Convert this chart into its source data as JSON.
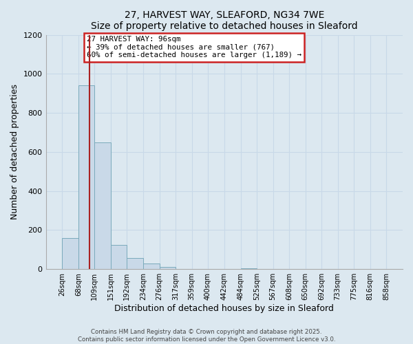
{
  "title": "27, HARVEST WAY, SLEAFORD, NG34 7WE",
  "subtitle": "Size of property relative to detached houses in Sleaford",
  "xlabel": "Distribution of detached houses by size in Sleaford",
  "ylabel": "Number of detached properties",
  "bar_edges": [
    26,
    68,
    109,
    151,
    192,
    234,
    276,
    317,
    359,
    400,
    442,
    484,
    525,
    567,
    608,
    650,
    692,
    733,
    775,
    816,
    858
  ],
  "bar_heights": [
    160,
    940,
    650,
    125,
    58,
    28,
    12,
    0,
    0,
    0,
    0,
    3,
    0,
    0,
    0,
    0,
    0,
    0,
    0,
    0
  ],
  "bar_color": "#c9d9e8",
  "bar_edge_color": "#7aaabb",
  "vline_x": 96,
  "vline_color": "#aa2222",
  "annotation_title": "27 HARVEST WAY: 96sqm",
  "annotation_line1": "← 39% of detached houses are smaller (767)",
  "annotation_line2": "60% of semi-detached houses are larger (1,189) →",
  "annotation_box_facecolor": "#ffffff",
  "annotation_box_edgecolor": "#cc2222",
  "ylim": [
    0,
    1200
  ],
  "yticks": [
    0,
    200,
    400,
    600,
    800,
    1000,
    1200
  ],
  "tick_labels": [
    "26sqm",
    "68sqm",
    "109sqm",
    "151sqm",
    "192sqm",
    "234sqm",
    "276sqm",
    "317sqm",
    "359sqm",
    "400sqm",
    "442sqm",
    "484sqm",
    "525sqm",
    "567sqm",
    "608sqm",
    "650sqm",
    "692sqm",
    "733sqm",
    "775sqm",
    "816sqm",
    "858sqm"
  ],
  "footer_line1": "Contains HM Land Registry data © Crown copyright and database right 2025.",
  "footer_line2": "Contains public sector information licensed under the Open Government Licence v3.0.",
  "grid_color": "#c8d8e8",
  "bg_color": "#dce8f0",
  "fig_bg_color": "#dce8f0"
}
